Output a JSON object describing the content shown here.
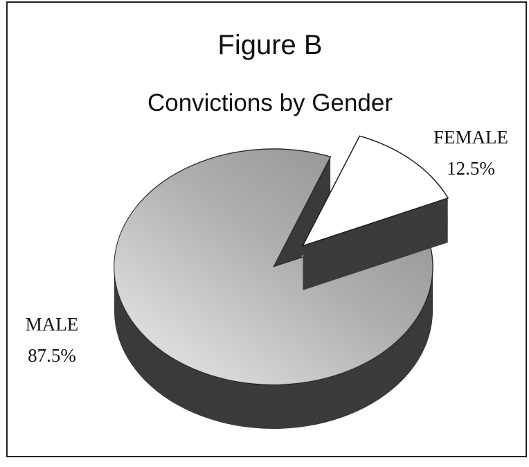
{
  "chart_data": {
    "type": "pie",
    "title": "Figure B",
    "subtitle": "Convictions by Gender",
    "categories": [
      "MALE",
      "FEMALE"
    ],
    "values": [
      87.5,
      12.5
    ],
    "value_labels": [
      "87.5%",
      "12.5%"
    ],
    "colors": [
      "#8c8c8c",
      "#ffffff"
    ]
  }
}
